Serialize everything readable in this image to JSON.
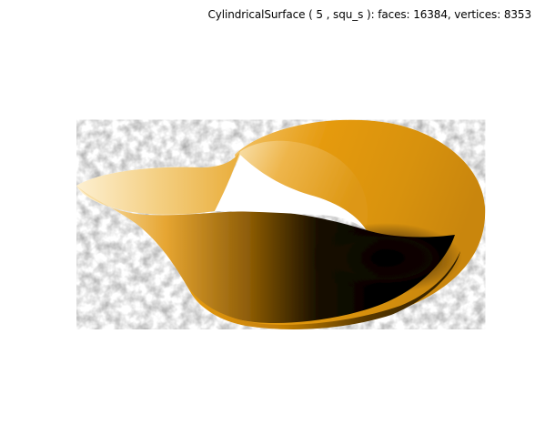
{
  "figure": {
    "title": "CylindricalSurface ( 5 , squ_s ):  faces: 16384,  vertices: 8353",
    "surface_color_light": "#f6e1b0",
    "surface_color_mid": "#e69a10",
    "surface_color_dark": "#000000"
  }
}
